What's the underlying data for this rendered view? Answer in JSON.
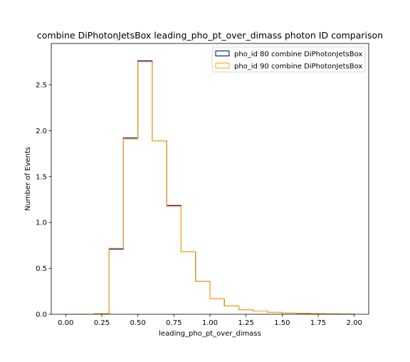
{
  "chart_data": {
    "type": "histogram",
    "title": "combine DiPhotonJetsBox leading_pho_pt_over_dimass photon ID comparison",
    "xlabel": "leading_pho_pt_over_dimass",
    "ylabel": "Number of Events",
    "xlim": [
      -0.1,
      2.1
    ],
    "ylim": [
      0,
      2.95
    ],
    "xticks": [
      0.0,
      0.25,
      0.5,
      0.75,
      1.0,
      1.25,
      1.5,
      1.75,
      2.0
    ],
    "xtick_labels": [
      "0.00",
      "0.25",
      "0.50",
      "0.75",
      "1.00",
      "1.25",
      "1.50",
      "1.75",
      "2.00"
    ],
    "yticks": [
      0.0,
      0.5,
      1.0,
      1.5,
      2.0,
      2.5
    ],
    "ytick_labels": [
      "0.0",
      "0.5",
      "1.0",
      "1.5",
      "2.0",
      "2.5"
    ],
    "bin_edges": [
      0.0,
      0.1,
      0.2,
      0.3,
      0.4,
      0.5,
      0.6,
      0.7,
      0.8,
      0.9,
      1.0,
      1.1,
      1.2,
      1.3,
      1.4,
      1.5,
      1.6,
      1.7,
      1.8,
      1.9,
      2.0
    ],
    "legend_position": "top-right",
    "series": [
      {
        "name": "pho_id 80 combine DiPhotonJetsBox",
        "color": "#00008b",
        "values": [
          0.0,
          0.0,
          0.005,
          0.71,
          1.92,
          2.76,
          1.89,
          1.185,
          0.68,
          0.36,
          0.17,
          0.09,
          0.05,
          0.035,
          0.02,
          0.012,
          0.01,
          0.006,
          0.004,
          0.003
        ]
      },
      {
        "name": "pho_id 90 combine DiPhotonJetsBox",
        "color": "#ffa500",
        "values": [
          0.0,
          0.0,
          0.005,
          0.72,
          1.91,
          2.75,
          1.89,
          1.175,
          0.68,
          0.36,
          0.17,
          0.09,
          0.05,
          0.035,
          0.02,
          0.012,
          0.01,
          0.006,
          0.004,
          0.003
        ]
      }
    ]
  }
}
